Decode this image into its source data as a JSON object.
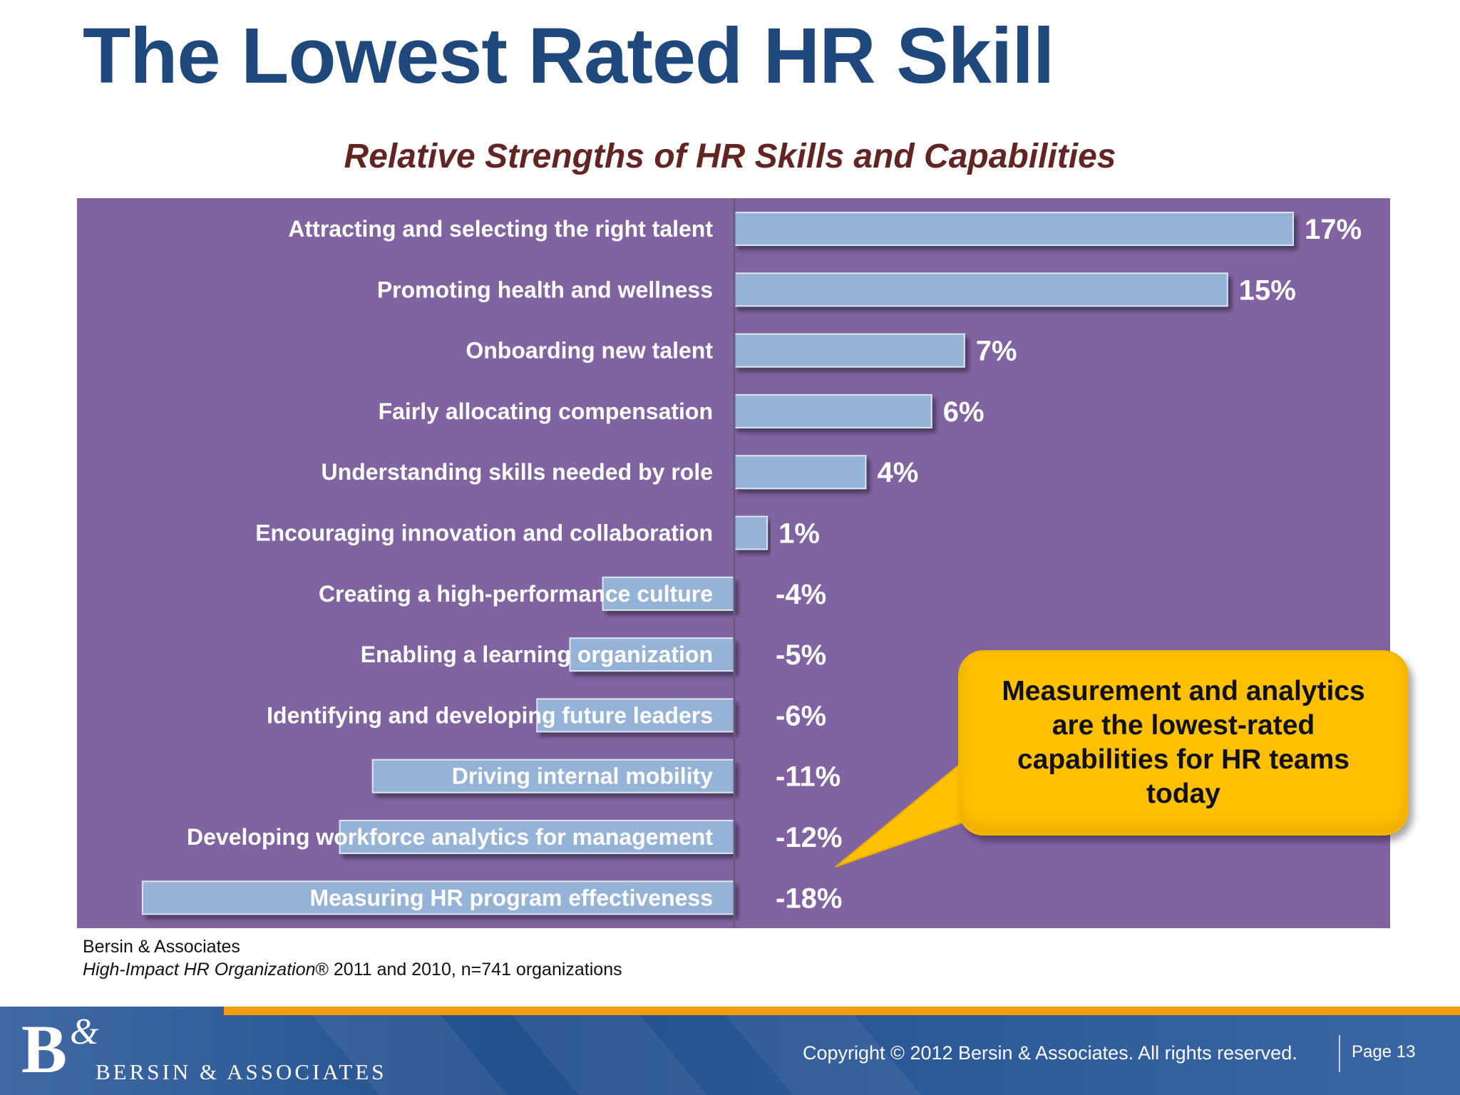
{
  "slide": {
    "title": "The Lowest Rated HR Skill"
  },
  "chart_data": {
    "type": "bar",
    "orientation": "horizontal",
    "title": "Relative Strengths of HR Skills and Capabilities",
    "categories": [
      "Attracting and selecting the right talent",
      "Promoting health and wellness",
      "Onboarding new talent",
      "Fairly allocating compensation",
      "Understanding skills needed by role",
      "Encouraging innovation and collaboration",
      "Creating a high-performance culture",
      "Enabling a learning organization",
      "Identifying and developing future leaders",
      "Driving internal mobility",
      "Developing workforce analytics for management",
      "Measuring HR program effectiveness"
    ],
    "values": [
      17,
      15,
      7,
      6,
      4,
      1,
      -4,
      -5,
      -6,
      -11,
      -12,
      -18
    ],
    "data_labels": [
      "17%",
      "15%",
      "7%",
      "6%",
      "4%",
      "1%",
      "-4%",
      "-5%",
      "-6%",
      "-11%",
      "-12%",
      "-18%"
    ],
    "xlim": [
      -18,
      17
    ],
    "grid": false,
    "colors": {
      "plot_background": "#8064a2",
      "bar_fill": "#95b3d7",
      "label_text": "#ffffff"
    }
  },
  "callout": {
    "text": "Measurement and analytics are the lowest-rated capabilities for HR teams today",
    "color": "#ffc000"
  },
  "source": {
    "line1": "Bersin & Associates",
    "line2_italic": "High-Impact HR Organization",
    "line2_rest": "® 2011 and 2010, n=741 organizations"
  },
  "footer": {
    "logo_mark": "B",
    "logo_amp": "&",
    "logo_text": "BERSIN & ASSOCIATES",
    "copyright": "Copyright © 2012 Bersin & Associates. All rights reserved.",
    "page": "Page 13"
  }
}
